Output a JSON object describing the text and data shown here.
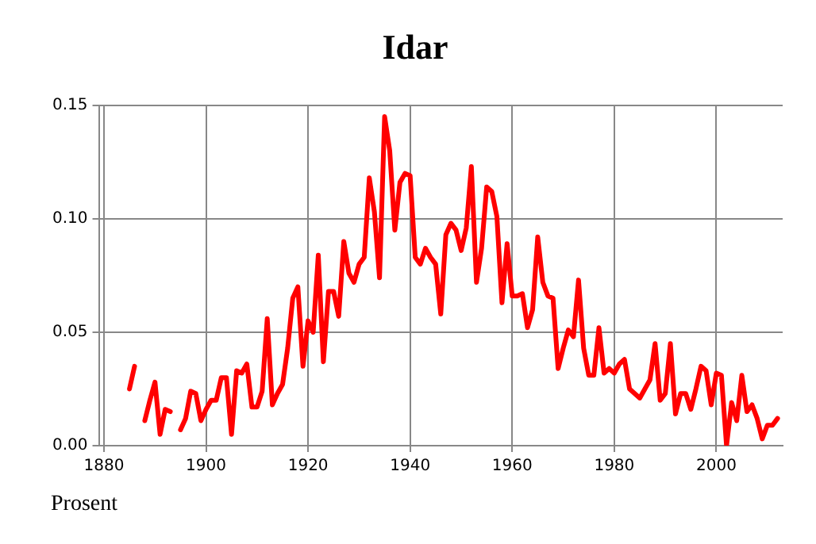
{
  "chart_data": {
    "type": "line",
    "title": "Idar",
    "ylabel": "Prosent",
    "x": [
      1885,
      1886,
      1887,
      1888,
      1889,
      1890,
      1891,
      1892,
      1893,
      1894,
      1895,
      1896,
      1897,
      1898,
      1899,
      1900,
      1901,
      1902,
      1903,
      1904,
      1905,
      1906,
      1907,
      1908,
      1909,
      1910,
      1911,
      1912,
      1913,
      1914,
      1915,
      1916,
      1917,
      1918,
      1919,
      1920,
      1921,
      1922,
      1923,
      1924,
      1925,
      1926,
      1927,
      1928,
      1929,
      1930,
      1931,
      1932,
      1933,
      1934,
      1935,
      1936,
      1937,
      1938,
      1939,
      1940,
      1941,
      1942,
      1943,
      1944,
      1945,
      1946,
      1947,
      1948,
      1949,
      1950,
      1951,
      1952,
      1953,
      1954,
      1955,
      1956,
      1957,
      1958,
      1959,
      1960,
      1961,
      1962,
      1963,
      1964,
      1965,
      1966,
      1967,
      1968,
      1969,
      1970,
      1971,
      1972,
      1973,
      1974,
      1975,
      1976,
      1977,
      1978,
      1979,
      1980,
      1981,
      1982,
      1983,
      1984,
      1985,
      1986,
      1987,
      1988,
      1989,
      1990,
      1991,
      1992,
      1993,
      1994,
      1995,
      1996,
      1997,
      1998,
      1999,
      2000,
      2001,
      2002,
      2003,
      2004,
      2005,
      2006,
      2007,
      2008,
      2009,
      2010,
      2011,
      2012
    ],
    "series": [
      {
        "color": "#ff0000",
        "values": [
          0.025,
          0.035,
          null,
          0.011,
          0.02,
          0.028,
          0.005,
          0.016,
          0.015,
          null,
          0.007,
          0.012,
          0.024,
          0.023,
          0.011,
          0.016,
          0.02,
          0.02,
          0.03,
          0.03,
          0.005,
          0.033,
          0.032,
          0.036,
          0.017,
          0.017,
          0.024,
          0.056,
          0.018,
          0.023,
          0.027,
          0.043,
          0.065,
          0.07,
          0.035,
          0.055,
          0.05,
          0.084,
          0.037,
          0.068,
          0.068,
          0.057,
          0.09,
          0.076,
          0.072,
          0.08,
          0.083,
          0.118,
          0.103,
          0.074,
          0.145,
          0.13,
          0.095,
          0.116,
          0.12,
          0.119,
          0.083,
          0.08,
          0.087,
          0.083,
          0.08,
          0.058,
          0.093,
          0.098,
          0.095,
          0.086,
          0.096,
          0.123,
          0.072,
          0.087,
          0.114,
          0.112,
          0.101,
          0.063,
          0.089,
          0.066,
          0.066,
          0.067,
          0.052,
          0.06,
          0.092,
          0.072,
          0.066,
          0.065,
          0.034,
          0.043,
          0.051,
          0.048,
          0.073,
          0.043,
          0.031,
          0.031,
          0.052,
          0.032,
          0.034,
          0.032,
          0.036,
          0.038,
          0.025,
          0.023,
          0.021,
          0.025,
          0.029,
          0.045,
          0.02,
          0.023,
          0.045,
          0.014,
          0.023,
          0.023,
          0.016,
          0.025,
          0.035,
          0.033,
          0.018,
          0.032,
          0.031,
          0,
          0.019,
          0.011,
          0.031,
          0.015,
          0.018,
          0.012,
          0.003,
          0.009,
          0.009,
          0.012
        ]
      }
    ],
    "xlim": [
      1879,
      2013
    ],
    "xticks": [
      1880,
      1900,
      1920,
      1940,
      1960,
      1980,
      2000
    ],
    "ylim": [
      0,
      0.15
    ],
    "yticks": [
      {
        "value": 0,
        "label": "0.00"
      },
      {
        "value": 0.05,
        "label": "0.05"
      },
      {
        "value": 0.1,
        "label": "0.10"
      },
      {
        "value": 0.15,
        "label": "0.15"
      }
    ],
    "grid": true,
    "line_style": "solid",
    "marker": "none",
    "legend": false
  }
}
